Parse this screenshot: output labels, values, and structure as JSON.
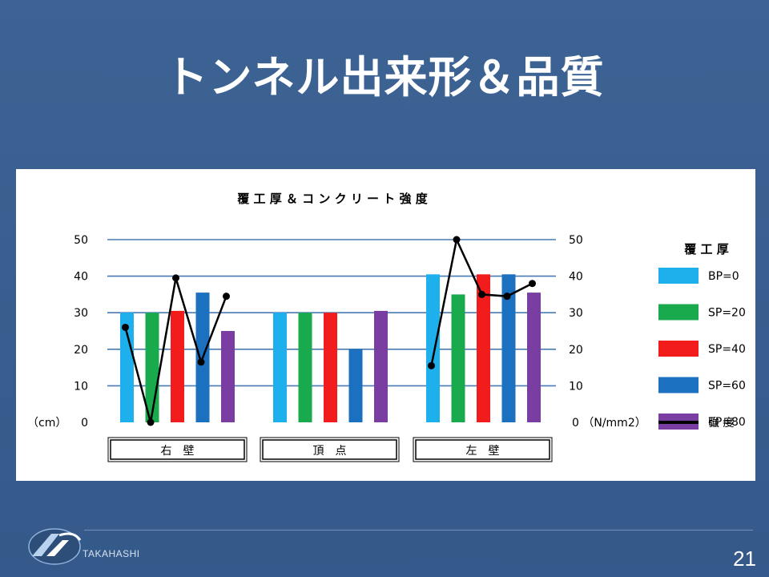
{
  "slide": {
    "title": "トンネル出来形＆品質",
    "page_number": "21",
    "brand": "TAKAHASHI"
  },
  "chart_data": {
    "type": "bar",
    "title": "覆 工 厚 ＆ コ ン ク リ ー ト 強 度",
    "left_axis": {
      "unit": "（cm）",
      "ticks": [
        0,
        10,
        20,
        30,
        40,
        50
      ],
      "ylim": [
        0,
        50
      ]
    },
    "right_axis": {
      "unit": "0 （N/mm2）",
      "ticks": [
        0,
        10,
        20,
        30,
        40,
        50
      ],
      "ylim": [
        0,
        50
      ]
    },
    "grid": true,
    "legend_title": "覆 工 厚",
    "legend_position": "right",
    "groups": [
      "右　壁",
      "頂　点",
      "左　壁"
    ],
    "series": [
      {
        "name": "BP=0",
        "color": "#1eb0ec",
        "values": [
          30,
          30,
          40.5
        ]
      },
      {
        "name": "SP=20",
        "color": "#1aaa4e",
        "values": [
          30,
          30,
          35
        ]
      },
      {
        "name": "SP=40",
        "color": "#f31c1c",
        "values": [
          30.5,
          30,
          40.5
        ]
      },
      {
        "name": "SP=60",
        "color": "#1c70c0",
        "values": [
          35.5,
          20,
          40.5
        ]
      },
      {
        "name": "EP=80",
        "color": "#7a3ea3",
        "values": [
          25,
          30.5,
          35.5
        ]
      }
    ],
    "strength_line": {
      "name": "強 度",
      "color": "#000000",
      "segments": [
        [
          26,
          0,
          39.5,
          16.5,
          34.5
        ],
        [
          15.5,
          50,
          35,
          34.5,
          38
        ]
      ]
    }
  }
}
